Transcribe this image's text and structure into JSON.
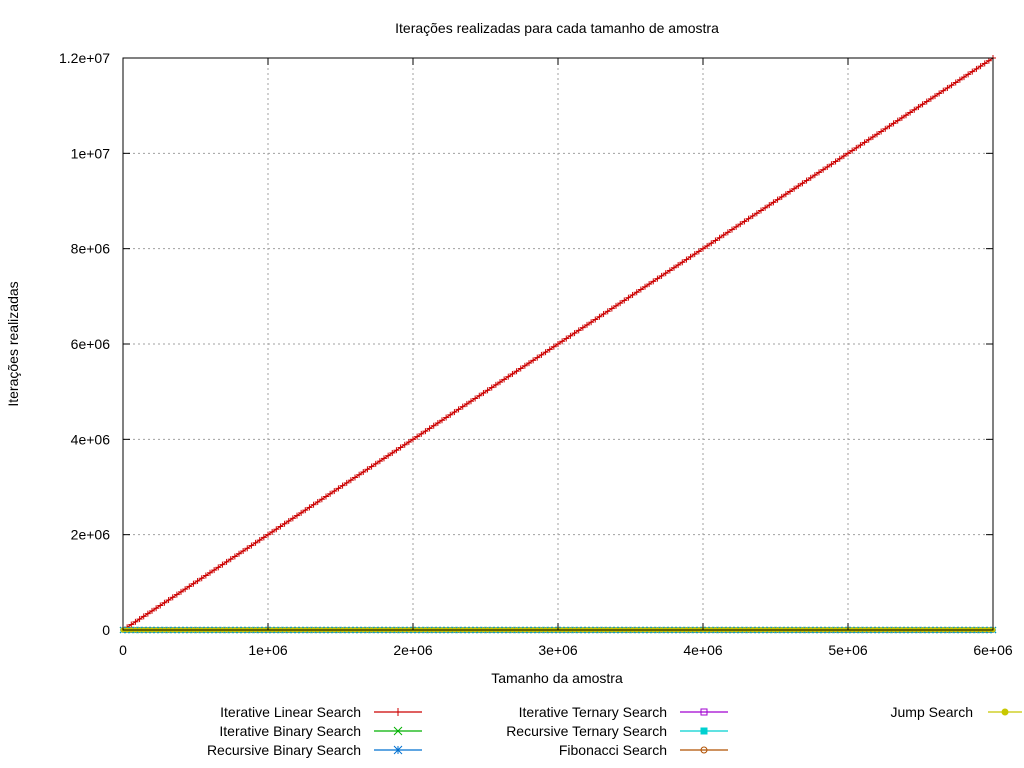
{
  "chart_data": {
    "type": "line",
    "title": "Iterações realizadas para cada tamanho de amostra",
    "xlabel": "Tamanho da amostra",
    "ylabel": "Iterações realizadas",
    "xlim": [
      0,
      6000000
    ],
    "ylim": [
      0,
      12000000
    ],
    "grid": true,
    "legend_position": "bottom",
    "x_ticks": [
      {
        "value": 0,
        "label": "0"
      },
      {
        "value": 1000000,
        "label": "1e+06"
      },
      {
        "value": 2000000,
        "label": "2e+06"
      },
      {
        "value": 3000000,
        "label": "3e+06"
      },
      {
        "value": 4000000,
        "label": "4e+06"
      },
      {
        "value": 5000000,
        "label": "5e+06"
      },
      {
        "value": 6000000,
        "label": "6e+06"
      }
    ],
    "y_ticks": [
      {
        "value": 0,
        "label": "0"
      },
      {
        "value": 2000000,
        "label": "2e+06"
      },
      {
        "value": 4000000,
        "label": "4e+06"
      },
      {
        "value": 6000000,
        "label": "6e+06"
      },
      {
        "value": 8000000,
        "label": "8e+06"
      },
      {
        "value": 10000000,
        "label": "1e+07"
      },
      {
        "value": 12000000,
        "label": "1.2e+07"
      }
    ],
    "series": [
      {
        "name": "Iterative Linear Search",
        "color": "#cc0000",
        "marker": "plus",
        "x": [
          0,
          1000000,
          2000000,
          3000000,
          4000000,
          5000000,
          6000000
        ],
        "y": [
          0,
          2000000,
          4000000,
          6000000,
          8000000,
          10000000,
          12000000
        ]
      },
      {
        "name": "Iterative Binary Search",
        "color": "#00b000",
        "marker": "cross",
        "x": [
          0,
          1000000,
          2000000,
          3000000,
          4000000,
          5000000,
          6000000
        ],
        "y": [
          0,
          21,
          22,
          23,
          23,
          24,
          24
        ]
      },
      {
        "name": "Recursive Binary Search",
        "color": "#0070d0",
        "marker": "star",
        "x": [
          0,
          1000000,
          2000000,
          3000000,
          4000000,
          5000000,
          6000000
        ],
        "y": [
          0,
          21,
          22,
          23,
          23,
          24,
          24
        ]
      },
      {
        "name": "Iterative Ternary Search",
        "color": "#a000d0",
        "marker": "box",
        "x": [
          0,
          1000000,
          2000000,
          3000000,
          4000000,
          5000000,
          6000000
        ],
        "y": [
          0,
          13,
          14,
          14,
          15,
          15,
          15
        ]
      },
      {
        "name": "Recursive Ternary Search",
        "color": "#00d0d0",
        "marker": "filled-box",
        "x": [
          0,
          1000000,
          2000000,
          3000000,
          4000000,
          5000000,
          6000000
        ],
        "y": [
          0,
          13,
          14,
          14,
          15,
          15,
          15
        ]
      },
      {
        "name": "Fibonacci Search",
        "color": "#b05000",
        "marker": "circle",
        "x": [
          0,
          1000000,
          2000000,
          3000000,
          4000000,
          5000000,
          6000000
        ],
        "y": [
          0,
          29,
          31,
          32,
          33,
          33,
          34
        ]
      },
      {
        "name": "Jump Search",
        "color": "#c8c800",
        "marker": "filled-circle",
        "x": [
          0,
          1000000,
          2000000,
          3000000,
          4000000,
          5000000,
          6000000
        ],
        "y": [
          0,
          2000,
          2828,
          3464,
          4000,
          4472,
          4899
        ]
      }
    ]
  }
}
